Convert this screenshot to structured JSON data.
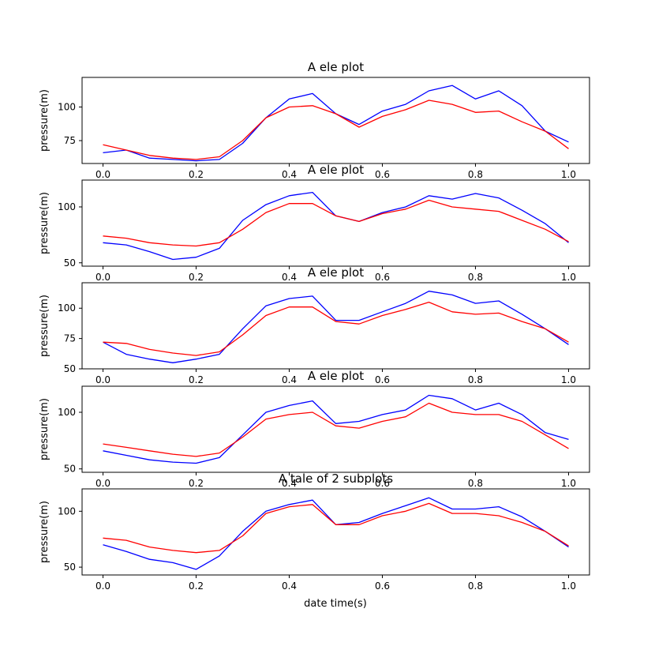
{
  "xlabel": "date time(s)",
  "colors": {
    "series_a": "#0000ff",
    "series_b": "#ff0000",
    "axes": "#000000",
    "background": "#ffffff"
  },
  "chart_data": [
    {
      "type": "line",
      "title": "A ele plot",
      "ylabel": "pressure(m)",
      "xlim": [
        -0.045,
        1.045
      ],
      "ylim": [
        58,
        122
      ],
      "xticks": [
        0.0,
        0.2,
        0.4,
        0.6,
        0.8,
        1.0
      ],
      "xtick_labels": [
        "0.0",
        "0.2",
        "0.4",
        "0.6",
        "0.8",
        "1.0"
      ],
      "yticks": [
        75,
        100
      ],
      "ytick_labels": [
        "75",
        "100"
      ],
      "x": [
        0.0,
        0.05,
        0.1,
        0.15,
        0.2,
        0.25,
        0.3,
        0.35,
        0.4,
        0.45,
        0.5,
        0.55,
        0.6,
        0.65,
        0.7,
        0.75,
        0.8,
        0.85,
        0.9,
        0.95,
        1.0
      ],
      "series": [
        {
          "values": [
            66,
            68,
            62,
            61,
            60,
            61,
            73,
            92,
            106,
            110,
            95,
            87,
            97,
            102,
            112,
            116,
            106,
            112,
            101,
            82,
            74
          ]
        },
        {
          "values": [
            72,
            68,
            64,
            62,
            61,
            63,
            75,
            92,
            100,
            101,
            95,
            85,
            93,
            98,
            105,
            102,
            96,
            97,
            89,
            82,
            69
          ]
        }
      ]
    },
    {
      "type": "line",
      "title": "A ele plot",
      "ylabel": "pressure(m)",
      "xlim": [
        -0.045,
        1.045
      ],
      "ylim": [
        47,
        124
      ],
      "xticks": [
        0.0,
        0.2,
        0.4,
        0.6,
        0.8,
        1.0
      ],
      "xtick_labels": [
        "0.0",
        "0.2",
        "0.4",
        "0.6",
        "0.8",
        "1.0"
      ],
      "yticks": [
        50,
        100
      ],
      "ytick_labels": [
        "50",
        "100"
      ],
      "x": [
        0.0,
        0.05,
        0.1,
        0.15,
        0.2,
        0.25,
        0.3,
        0.35,
        0.4,
        0.45,
        0.5,
        0.55,
        0.6,
        0.65,
        0.7,
        0.75,
        0.8,
        0.85,
        0.9,
        0.95,
        1.0
      ],
      "series": [
        {
          "values": [
            68,
            66,
            60,
            53,
            55,
            63,
            88,
            102,
            110,
            113,
            92,
            87,
            95,
            100,
            110,
            107,
            112,
            108,
            97,
            85,
            68
          ]
        },
        {
          "values": [
            74,
            72,
            68,
            66,
            65,
            68,
            80,
            95,
            103,
            103,
            92,
            87,
            94,
            98,
            106,
            100,
            98,
            96,
            88,
            80,
            69
          ]
        }
      ]
    },
    {
      "type": "line",
      "title": "A ele plot",
      "ylabel": "pressure(m)",
      "xlim": [
        -0.045,
        1.045
      ],
      "ylim": [
        50,
        121
      ],
      "xticks": [
        0.0,
        0.2,
        0.4,
        0.6,
        0.8,
        1.0
      ],
      "xtick_labels": [
        "0.0",
        "0.2",
        "0.4",
        "0.6",
        "0.8",
        "1.0"
      ],
      "yticks": [
        50,
        75,
        100
      ],
      "ytick_labels": [
        "50",
        "75",
        "100"
      ],
      "x": [
        0.0,
        0.05,
        0.1,
        0.15,
        0.2,
        0.25,
        0.3,
        0.35,
        0.4,
        0.45,
        0.5,
        0.55,
        0.6,
        0.65,
        0.7,
        0.75,
        0.8,
        0.85,
        0.9,
        0.95,
        1.0
      ],
      "series": [
        {
          "values": [
            72,
            62,
            58,
            55,
            58,
            62,
            83,
            102,
            108,
            110,
            90,
            90,
            97,
            104,
            114,
            111,
            104,
            106,
            95,
            83,
            70
          ]
        },
        {
          "values": [
            72,
            71,
            66,
            63,
            61,
            64,
            78,
            94,
            101,
            101,
            89,
            87,
            94,
            99,
            105,
            97,
            95,
            96,
            89,
            83,
            72
          ]
        }
      ]
    },
    {
      "type": "line",
      "title": "A ele plot",
      "ylabel": "pressure(m)",
      "xlim": [
        -0.045,
        1.045
      ],
      "ylim": [
        47,
        123
      ],
      "xticks": [
        0.0,
        0.2,
        0.4,
        0.6,
        0.8,
        1.0
      ],
      "xtick_labels": [
        "0.0",
        "0.2",
        "0.4",
        "0.6",
        "0.8",
        "1.0"
      ],
      "yticks": [
        50,
        100
      ],
      "ytick_labels": [
        "50",
        "100"
      ],
      "x": [
        0.0,
        0.05,
        0.1,
        0.15,
        0.2,
        0.25,
        0.3,
        0.35,
        0.4,
        0.45,
        0.5,
        0.55,
        0.6,
        0.65,
        0.7,
        0.75,
        0.8,
        0.85,
        0.9,
        0.95,
        1.0
      ],
      "series": [
        {
          "values": [
            66,
            62,
            58,
            56,
            55,
            60,
            80,
            100,
            106,
            110,
            90,
            92,
            98,
            102,
            115,
            112,
            102,
            108,
            98,
            82,
            76
          ]
        },
        {
          "values": [
            72,
            69,
            66,
            63,
            61,
            64,
            78,
            94,
            98,
            100,
            88,
            86,
            92,
            96,
            108,
            100,
            98,
            98,
            92,
            80,
            68
          ]
        }
      ]
    },
    {
      "type": "line",
      "title": "A tale of 2 subplots",
      "ylabel": "pressure(m)",
      "xlim": [
        -0.045,
        1.045
      ],
      "ylim": [
        43,
        120
      ],
      "xticks": [
        0.0,
        0.2,
        0.4,
        0.6,
        0.8,
        1.0
      ],
      "xtick_labels": [
        "0.0",
        "0.2",
        "0.4",
        "0.6",
        "0.8",
        "1.0"
      ],
      "yticks": [
        50,
        100
      ],
      "ytick_labels": [
        "50",
        "100"
      ],
      "x": [
        0.0,
        0.05,
        0.1,
        0.15,
        0.2,
        0.25,
        0.3,
        0.35,
        0.4,
        0.45,
        0.5,
        0.55,
        0.6,
        0.65,
        0.7,
        0.75,
        0.8,
        0.85,
        0.9,
        0.95,
        1.0
      ],
      "series": [
        {
          "values": [
            70,
            64,
            57,
            54,
            48,
            60,
            82,
            100,
            106,
            110,
            88,
            90,
            98,
            105,
            112,
            102,
            102,
            104,
            95,
            82,
            68
          ]
        },
        {
          "values": [
            76,
            74,
            68,
            65,
            63,
            65,
            78,
            98,
            104,
            106,
            88,
            88,
            96,
            100,
            107,
            98,
            98,
            96,
            90,
            82,
            69
          ]
        }
      ]
    }
  ]
}
